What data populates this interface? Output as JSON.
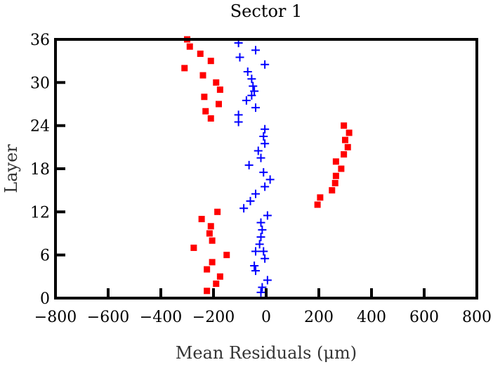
{
  "chart_data": {
    "type": "scatter",
    "title": "Sector 1",
    "xlabel": "Mean Residuals (μm)",
    "ylabel": "Layer",
    "xlim": [
      -800,
      800
    ],
    "ylim": [
      0,
      36
    ],
    "x_ticks": [
      -800,
      -600,
      -400,
      -200,
      0,
      200,
      400,
      600,
      800
    ],
    "x_tick_labels": [
      "−800",
      "−600",
      "−400",
      "−200",
      "0",
      "200",
      "400",
      "600",
      "800"
    ],
    "y_ticks": [
      0,
      6,
      12,
      18,
      24,
      30,
      36
    ],
    "y_tick_labels": [
      "0",
      "6",
      "12",
      "18",
      "24",
      "30",
      "36"
    ],
    "grid": false,
    "series": [
      {
        "marker": "square",
        "color": "#ff0000",
        "points": [
          {
            "x": -300,
            "y": 36
          },
          {
            "x": -290,
            "y": 35
          },
          {
            "x": -250,
            "y": 34
          },
          {
            "x": -210,
            "y": 33
          },
          {
            "x": -310,
            "y": 32
          },
          {
            "x": -240,
            "y": 31
          },
          {
            "x": -190,
            "y": 30
          },
          {
            "x": -175,
            "y": 29
          },
          {
            "x": -235,
            "y": 28
          },
          {
            "x": -180,
            "y": 27
          },
          {
            "x": -230,
            "y": 26
          },
          {
            "x": -210,
            "y": 25
          },
          {
            "x": 295,
            "y": 24
          },
          {
            "x": 315,
            "y": 23
          },
          {
            "x": 300,
            "y": 22
          },
          {
            "x": 310,
            "y": 21
          },
          {
            "x": 295,
            "y": 20
          },
          {
            "x": 265,
            "y": 19
          },
          {
            "x": 285,
            "y": 18
          },
          {
            "x": 265,
            "y": 17
          },
          {
            "x": 262,
            "y": 16
          },
          {
            "x": 250,
            "y": 15
          },
          {
            "x": 205,
            "y": 14
          },
          {
            "x": 195,
            "y": 13
          },
          {
            "x": -185,
            "y": 12
          },
          {
            "x": -245,
            "y": 11
          },
          {
            "x": -210,
            "y": 10
          },
          {
            "x": -215,
            "y": 9
          },
          {
            "x": -205,
            "y": 8
          },
          {
            "x": -275,
            "y": 7
          },
          {
            "x": -150,
            "y": 6
          },
          {
            "x": -205,
            "y": 5
          },
          {
            "x": -225,
            "y": 4
          },
          {
            "x": -175,
            "y": 3
          },
          {
            "x": -190,
            "y": 2
          },
          {
            "x": -225,
            "y": 1
          }
        ]
      },
      {
        "marker": "plus",
        "color": "#0000ff",
        "points": [
          {
            "x": -105,
            "y": 35.5
          },
          {
            "x": -40,
            "y": 34.5
          },
          {
            "x": -100,
            "y": 33.5
          },
          {
            "x": -5,
            "y": 32.5
          },
          {
            "x": -70,
            "y": 31.5
          },
          {
            "x": -55,
            "y": 30.5
          },
          {
            "x": -50,
            "y": 29.5
          },
          {
            "x": -45,
            "y": 28.8
          },
          {
            "x": -55,
            "y": 28.2
          },
          {
            "x": -75,
            "y": 27.5
          },
          {
            "x": -40,
            "y": 26.5
          },
          {
            "x": -105,
            "y": 25.5
          },
          {
            "x": -105,
            "y": 24.5
          },
          {
            "x": -5,
            "y": 23.5
          },
          {
            "x": -10,
            "y": 22.5
          },
          {
            "x": -5,
            "y": 21.5
          },
          {
            "x": -30,
            "y": 20.5
          },
          {
            "x": -20,
            "y": 19.5
          },
          {
            "x": -65,
            "y": 18.5
          },
          {
            "x": -10,
            "y": 17.5
          },
          {
            "x": 15,
            "y": 16.5
          },
          {
            "x": -5,
            "y": 15.5
          },
          {
            "x": -40,
            "y": 14.5
          },
          {
            "x": -60,
            "y": 13.5
          },
          {
            "x": -85,
            "y": 12.5
          },
          {
            "x": 5,
            "y": 11.5
          },
          {
            "x": -20,
            "y": 10.5
          },
          {
            "x": -15,
            "y": 9.5
          },
          {
            "x": -20,
            "y": 8.5
          },
          {
            "x": -25,
            "y": 7.5
          },
          {
            "x": -10,
            "y": 6.5
          },
          {
            "x": -40,
            "y": 6.5
          },
          {
            "x": -5,
            "y": 5.5
          },
          {
            "x": -45,
            "y": 4.5
          },
          {
            "x": -40,
            "y": 3.8
          },
          {
            "x": 5,
            "y": 2.5
          },
          {
            "x": -15,
            "y": 1.5
          },
          {
            "x": -20,
            "y": 0.8
          }
        ]
      }
    ]
  }
}
